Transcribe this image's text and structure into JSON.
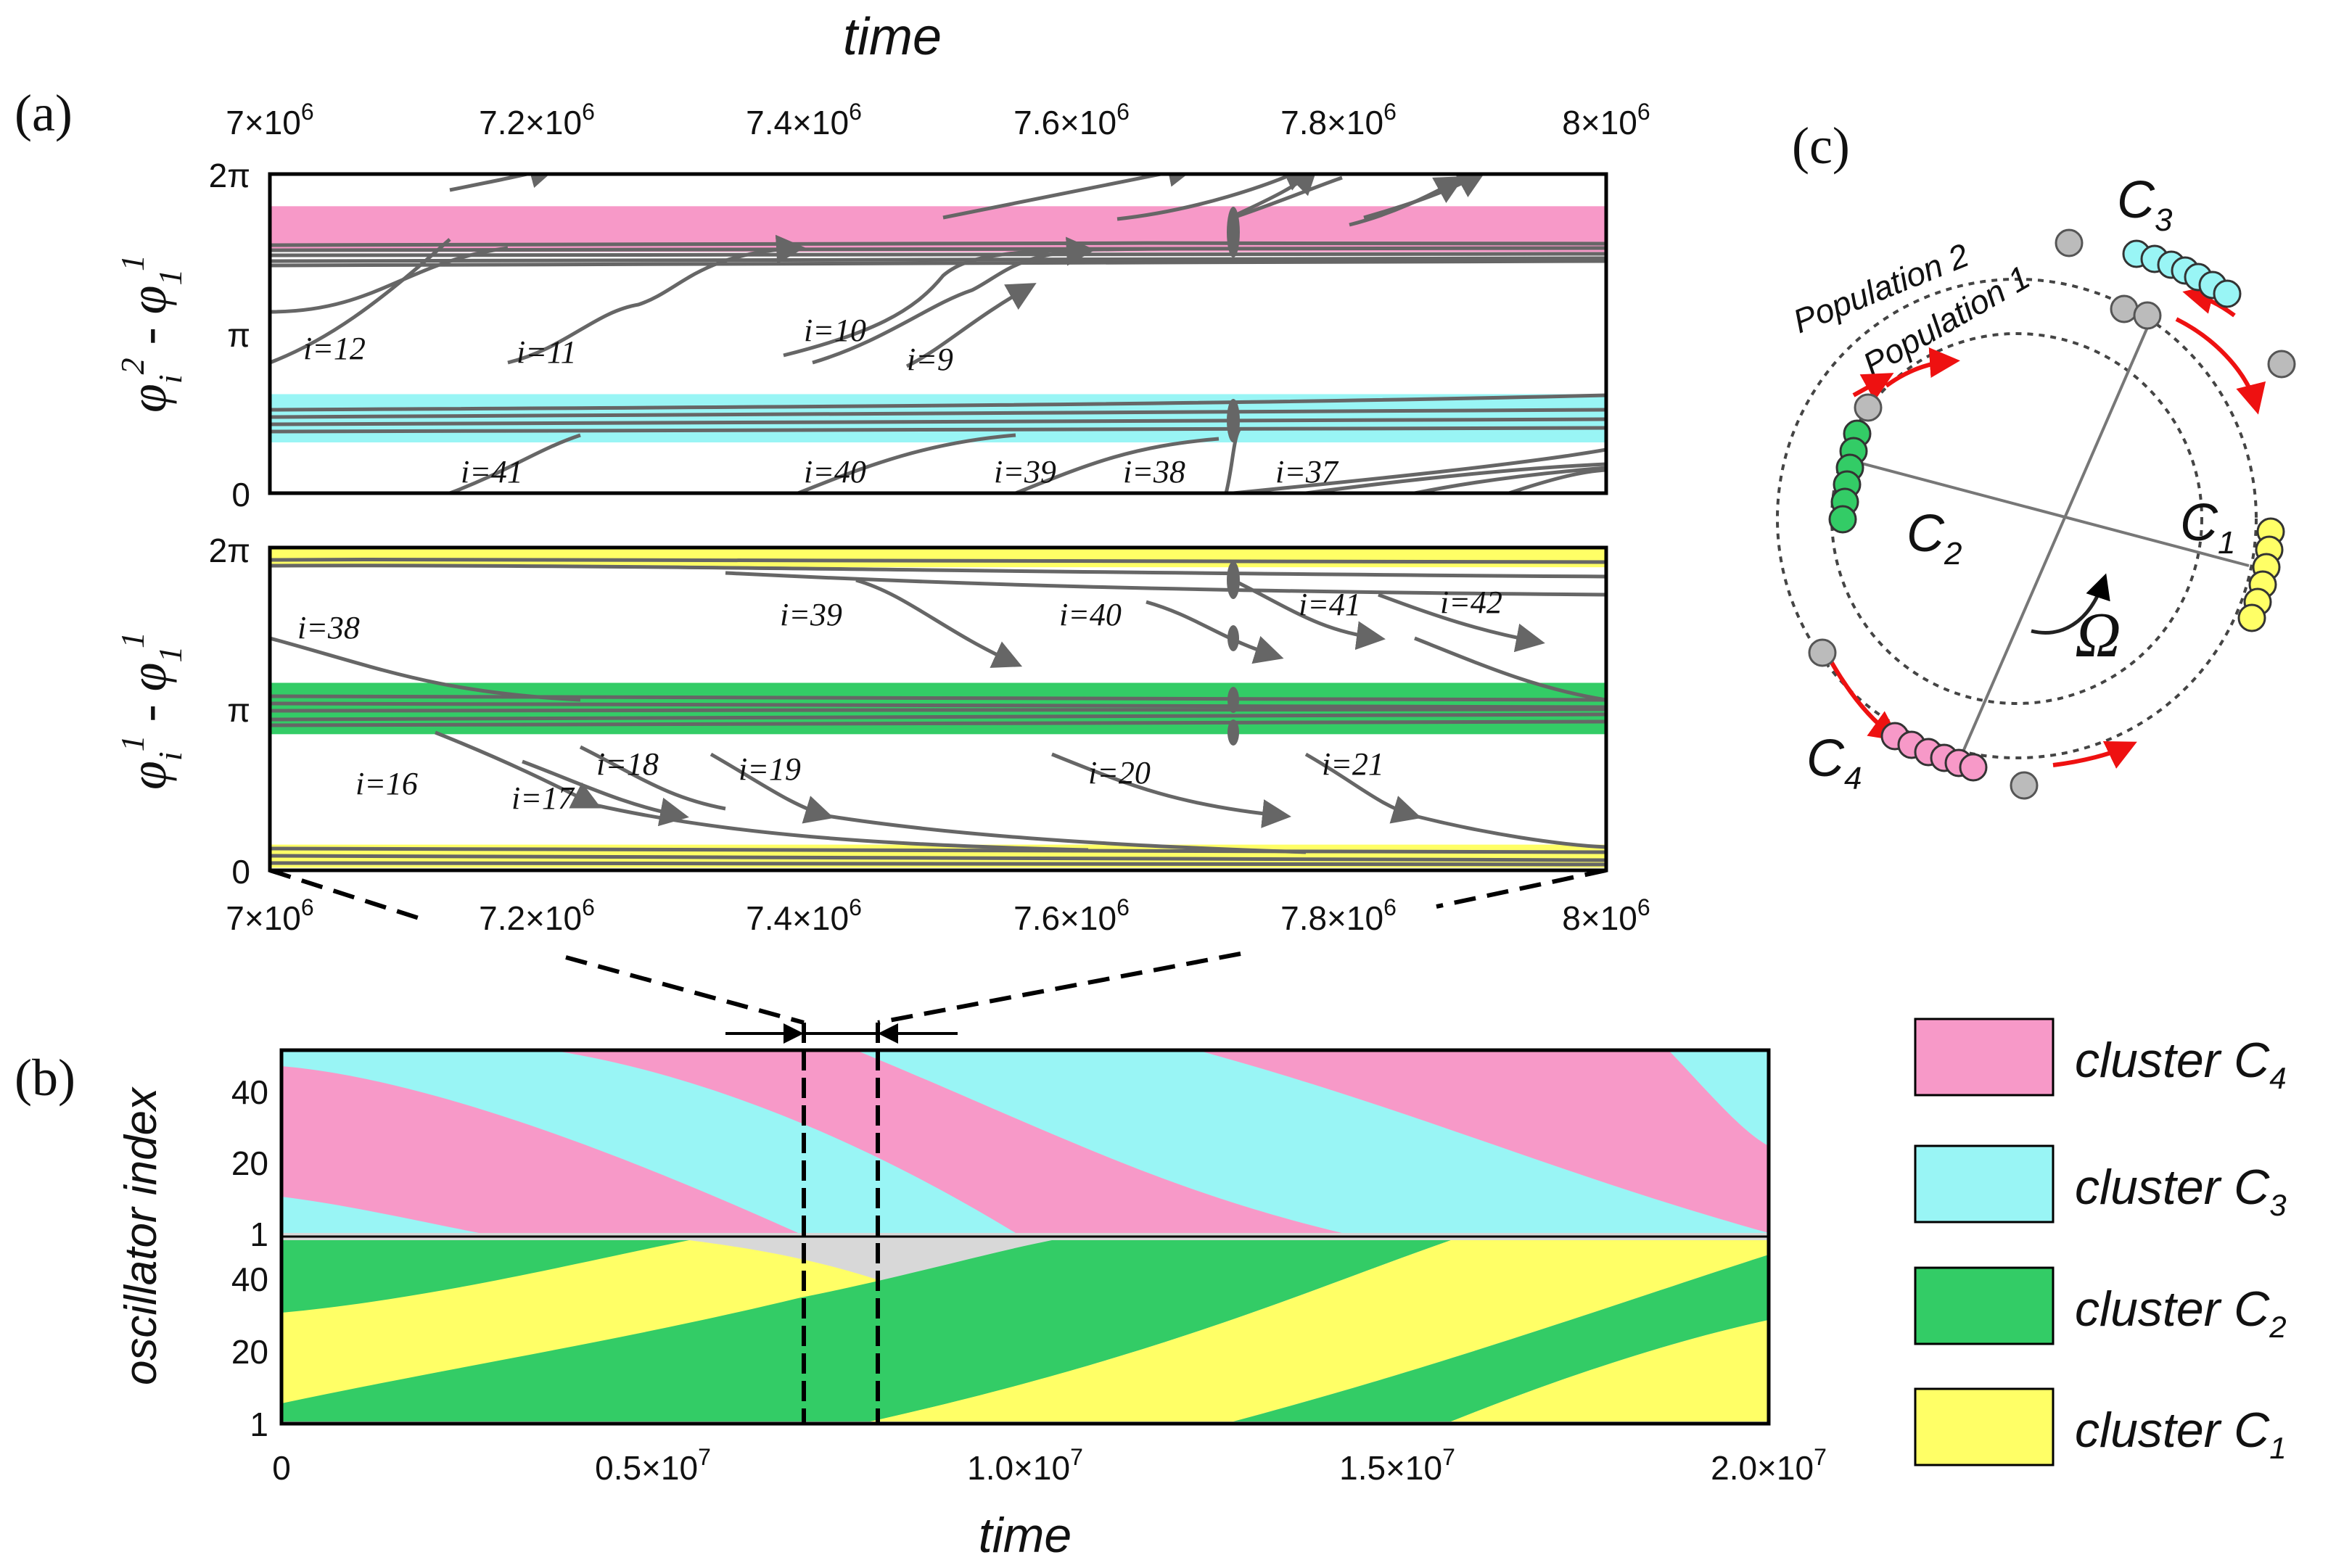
{
  "panel_labels": {
    "a": "(a)",
    "b": "(b)",
    "c": "(c)"
  },
  "colors": {
    "C1": "#ffff66",
    "C2": "#33cc66",
    "C3": "#99f5f5",
    "C4": "#f799c8",
    "trace": "#666666",
    "gap": "#d8d8d8",
    "arrow": "#ee1111",
    "node": "#bbbbbb"
  },
  "chart_data": [
    {
      "id": "a-top",
      "type": "line",
      "title": "time",
      "ylabel": "φ_i^2 - φ_1^1",
      "xlim": [
        7000000,
        8000000
      ],
      "ylim": [
        0,
        6.2832
      ],
      "x_ticks": [
        "7×10^6",
        "7.2×10^6",
        "7.4×10^6",
        "7.6×10^6",
        "7.8×10^6",
        "8×10^6"
      ],
      "y_ticks": [
        "0",
        "π",
        "2π"
      ],
      "bands": [
        {
          "cluster": "C4",
          "from": 4.75,
          "to": 5.65
        },
        {
          "cluster": "C3",
          "from": 1.0,
          "to": 1.95
        }
      ],
      "annotations": [
        "i=12",
        "i=11",
        "i=10",
        "i=9",
        "i=41",
        "i=40",
        "i=39",
        "i=38",
        "i=37"
      ]
    },
    {
      "id": "a-bottom",
      "type": "line",
      "ylabel": "φ_i^1 - φ_1^1",
      "xlim": [
        7000000,
        8000000
      ],
      "ylim": [
        0,
        6.2832
      ],
      "x_ticks": [
        "7×10^6",
        "7.2×10^6",
        "7.4×10^6",
        "7.6×10^6",
        "7.8×10^6",
        "8×10^6"
      ],
      "y_ticks": [
        "0",
        "π",
        "2π"
      ],
      "bands": [
        {
          "cluster": "C1",
          "from": 5.9,
          "to": 6.2832
        },
        {
          "cluster": "C2",
          "from": 2.65,
          "to": 3.65
        },
        {
          "cluster": "C1",
          "from": 0.05,
          "to": 0.5
        }
      ],
      "annotations": [
        "i=38",
        "i=39",
        "i=40",
        "i=41",
        "i=42",
        "i=16",
        "i=17",
        "i=18",
        "i=19",
        "i=20",
        "i=21"
      ]
    },
    {
      "id": "b",
      "type": "area",
      "xlabel": "time",
      "ylabel": "oscillator index",
      "xlim": [
        0,
        20000000
      ],
      "x_ticks": [
        "0",
        "0.5×10^7",
        "1.0×10^7",
        "1.5×10^7",
        "2.0×10^7"
      ],
      "y_ticks_top": [
        "1",
        "20",
        "40"
      ],
      "y_ticks_bottom": [
        "1",
        "20",
        "40"
      ],
      "zoom_window": [
        7000000,
        8000000
      ],
      "legend": [
        {
          "cluster": "C4",
          "label": "cluster C",
          "sub": "4"
        },
        {
          "cluster": "C3",
          "label": "cluster C",
          "sub": "3"
        },
        {
          "cluster": "C2",
          "label": "cluster C",
          "sub": "2"
        },
        {
          "cluster": "C1",
          "label": "cluster C",
          "sub": "1"
        }
      ]
    },
    {
      "id": "c",
      "type": "diagram",
      "ring_labels": [
        "Population 2",
        "Population 1"
      ],
      "clusters": [
        {
          "name": "C",
          "sub": "3"
        },
        {
          "name": "C",
          "sub": "2"
        },
        {
          "name": "C",
          "sub": "1"
        },
        {
          "name": "C",
          "sub": "4"
        }
      ],
      "rotation_label": "Ω"
    }
  ]
}
